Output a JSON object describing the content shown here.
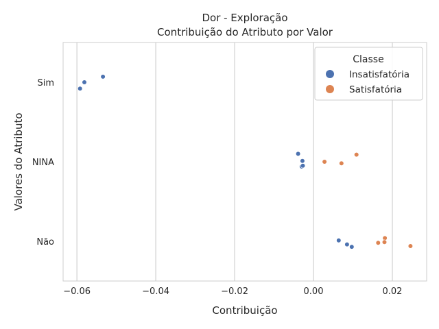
{
  "chart_data": {
    "type": "scatter",
    "title": "Dor - Exploração",
    "subtitle": "Contribuição do Atributo por Valor",
    "xlabel": "Contribuição",
    "ylabel": "Valores do Atributo",
    "categories": [
      "Sim",
      "NINA",
      "Não"
    ],
    "xlim": [
      -0.0635,
      0.0287
    ],
    "xticks": [
      -0.06,
      -0.04,
      -0.02,
      0.0,
      0.02
    ],
    "xtick_labels": [
      "−0.06",
      "−0.04",
      "−0.02",
      "0.00",
      "0.02"
    ],
    "grid": "x",
    "legend": {
      "title": "Classe",
      "placement": "top-right"
    },
    "series": [
      {
        "name": "Insatisfatória",
        "color": "#4c72b0",
        "points": [
          {
            "category": "Sim",
            "x": -0.0534,
            "jitter": -0.07
          },
          {
            "category": "Sim",
            "x": -0.0581,
            "jitter": 0.0
          },
          {
            "category": "Sim",
            "x": -0.0592,
            "jitter": 0.08
          },
          {
            "category": "NINA",
            "x": -0.0039,
            "jitter": -0.1
          },
          {
            "category": "NINA",
            "x": -0.0028,
            "jitter": -0.01
          },
          {
            "category": "NINA",
            "x": -0.003,
            "jitter": 0.06
          },
          {
            "category": "NINA",
            "x": -0.0027,
            "jitter": 0.05
          },
          {
            "category": "Não",
            "x": 0.0064,
            "jitter": -0.01
          },
          {
            "category": "Não",
            "x": 0.0085,
            "jitter": 0.04
          },
          {
            "category": "Não",
            "x": 0.0097,
            "jitter": 0.07
          }
        ]
      },
      {
        "name": "Satisfatória",
        "color": "#dd8452",
        "points": [
          {
            "category": "NINA",
            "x": 0.0109,
            "jitter": -0.09
          },
          {
            "category": "NINA",
            "x": 0.0028,
            "jitter": 0.0
          },
          {
            "category": "NINA",
            "x": 0.0071,
            "jitter": 0.02
          },
          {
            "category": "Não",
            "x": 0.0181,
            "jitter": -0.04
          },
          {
            "category": "Não",
            "x": 0.018,
            "jitter": 0.01
          },
          {
            "category": "Não",
            "x": 0.0164,
            "jitter": 0.02
          },
          {
            "category": "Não",
            "x": 0.0246,
            "jitter": 0.06
          }
        ]
      }
    ]
  }
}
